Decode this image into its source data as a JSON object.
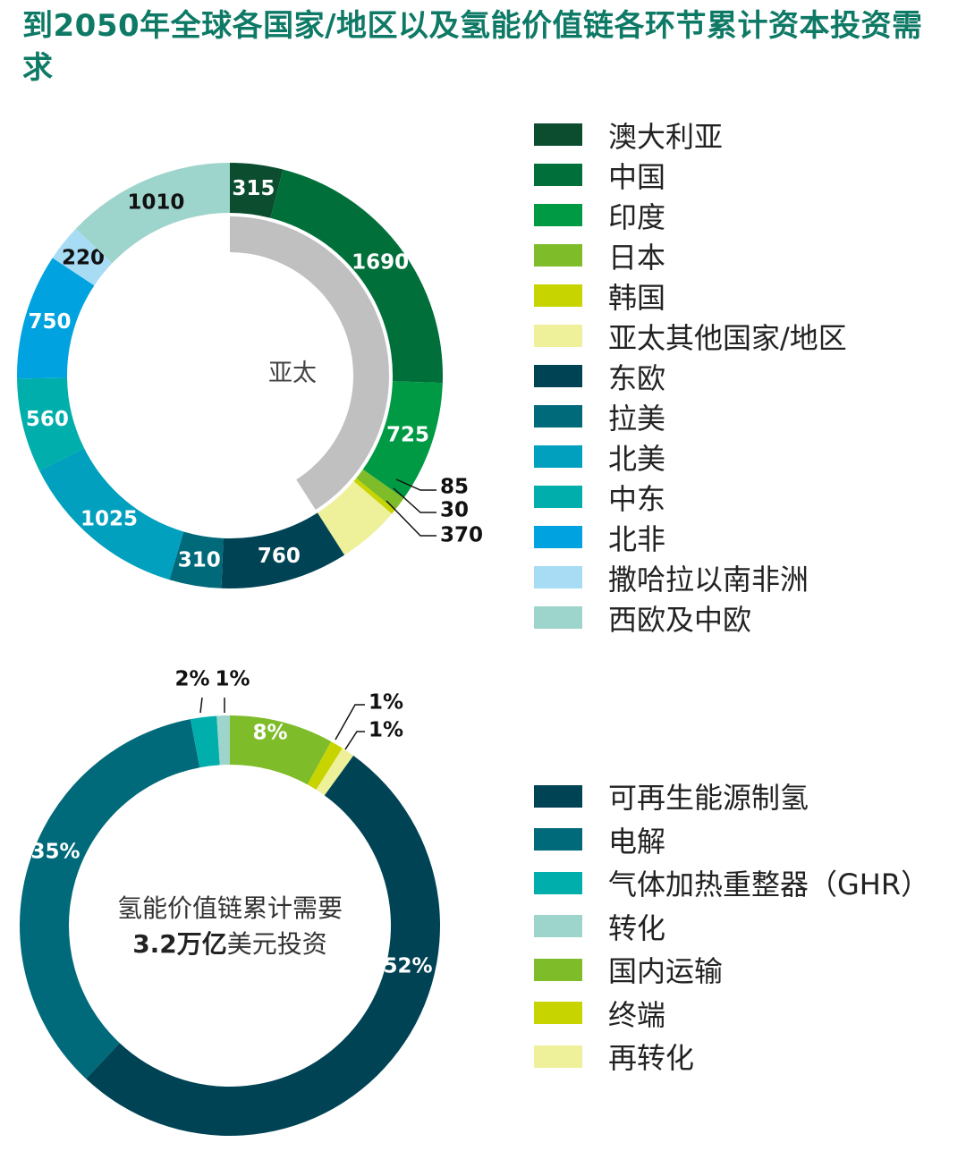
{
  "title": "到2050年全球各国家/地区以及氢能价值链各环节累计资本投资需求",
  "chart_data": [
    {
      "type": "pie",
      "variant": "donut",
      "center_label": "亚太",
      "highlight_group": {
        "label": "亚太",
        "members": [
          "澳大利亚",
          "中国",
          "印度",
          "日本",
          "韩国",
          "亚太其他国家/地区"
        ],
        "color": "#c0c0c0"
      },
      "categories": [
        "澳大利亚",
        "中国",
        "印度",
        "日本",
        "韩国",
        "亚太其他国家/地区",
        "东欧",
        "拉美",
        "北美",
        "中东",
        "北非",
        "撒哈拉以南非洲",
        "西欧及中欧"
      ],
      "values": [
        315,
        1690,
        725,
        85,
        30,
        370,
        760,
        310,
        1025,
        560,
        750,
        220,
        1010
      ],
      "labels": [
        "315",
        "1690",
        "725",
        "85",
        "30",
        "370",
        "760",
        "310",
        "1025",
        "560",
        "750",
        "220",
        "1010"
      ],
      "colors": [
        "#0b4d2e",
        "#006f3a",
        "#009a44",
        "#7fbc2a",
        "#c8d400",
        "#eef09a",
        "#004355",
        "#006a7a",
        "#00a0be",
        "#00aeac",
        "#00a3e0",
        "#a8dcf4",
        "#9dd4cb"
      ],
      "legend_placement": "right"
    },
    {
      "type": "pie",
      "variant": "donut",
      "center_label_line1": "氢能价值链累计需要",
      "center_label_bold": "3.2万亿",
      "center_label_rest": "美元投资",
      "categories": [
        "国内运输",
        "终端",
        "再转化",
        "可再生能源制氢",
        "电解",
        "气体加热重整器（GHR）",
        "转化"
      ],
      "values": [
        8,
        1,
        1,
        52,
        35,
        2,
        1
      ],
      "labels": [
        "8%",
        "1%",
        "1%",
        "52%",
        "35%",
        "2%",
        "1%"
      ],
      "colors": [
        "#7fbc2a",
        "#c8d400",
        "#eef09a",
        "#004355",
        "#006a7a",
        "#00aeac",
        "#9dd4cb"
      ],
      "legend_order": [
        "可再生能源制氢",
        "电解",
        "气体加热重整器（GHR）",
        "转化",
        "国内运输",
        "终端",
        "再转化"
      ],
      "legend_placement": "right"
    }
  ],
  "legend1": [
    {
      "label": "澳大利亚",
      "color": "#0b4d2e"
    },
    {
      "label": "中国",
      "color": "#006f3a"
    },
    {
      "label": "印度",
      "color": "#009a44"
    },
    {
      "label": "日本",
      "color": "#7fbc2a"
    },
    {
      "label": "韩国",
      "color": "#c8d400"
    },
    {
      "label": "亚太其他国家/地区",
      "color": "#eef09a"
    },
    {
      "label": "东欧",
      "color": "#004355"
    },
    {
      "label": "拉美",
      "color": "#006a7a"
    },
    {
      "label": "北美",
      "color": "#00a0be"
    },
    {
      "label": "中东",
      "color": "#00aeac"
    },
    {
      "label": "北非",
      "color": "#00a3e0"
    },
    {
      "label": "撒哈拉以南非洲",
      "color": "#a8dcf4"
    },
    {
      "label": "西欧及中欧",
      "color": "#9dd4cb"
    }
  ],
  "legend2": [
    {
      "label": "可再生能源制氢",
      "color": "#004355"
    },
    {
      "label": "电解",
      "color": "#006a7a"
    },
    {
      "label": "气体加热重整器（GHR）",
      "color": "#00aeac"
    },
    {
      "label": "转化",
      "color": "#9dd4cb"
    },
    {
      "label": "国内运输",
      "color": "#7fbc2a"
    },
    {
      "label": "终端",
      "color": "#c8d400"
    },
    {
      "label": "再转化",
      "color": "#eef09a"
    }
  ]
}
